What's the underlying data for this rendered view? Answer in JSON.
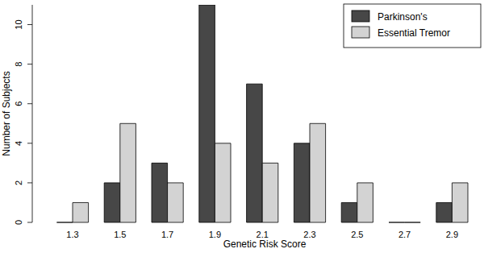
{
  "chart_data": {
    "type": "bar",
    "x_label": "Genetic Risk Score",
    "y_label": "Number of Subjects",
    "categories": [
      "1.3",
      "1.5",
      "1.7",
      "1.9",
      "2.1",
      "2.3",
      "2.5",
      "2.7",
      "2.9"
    ],
    "series": [
      {
        "name": "Parkinson's",
        "color": "#474747",
        "values": [
          0,
          2,
          3,
          11,
          7,
          4,
          1,
          0,
          1
        ]
      },
      {
        "name": "Essential Tremor",
        "color": "#d3d3d3",
        "values": [
          1,
          5,
          2,
          4,
          3,
          5,
          2,
          0,
          2
        ]
      }
    ],
    "ylim": [
      0,
      11
    ],
    "yticks": [
      0,
      2,
      4,
      6,
      8,
      10
    ],
    "legend": "topright",
    "grid": false
  }
}
